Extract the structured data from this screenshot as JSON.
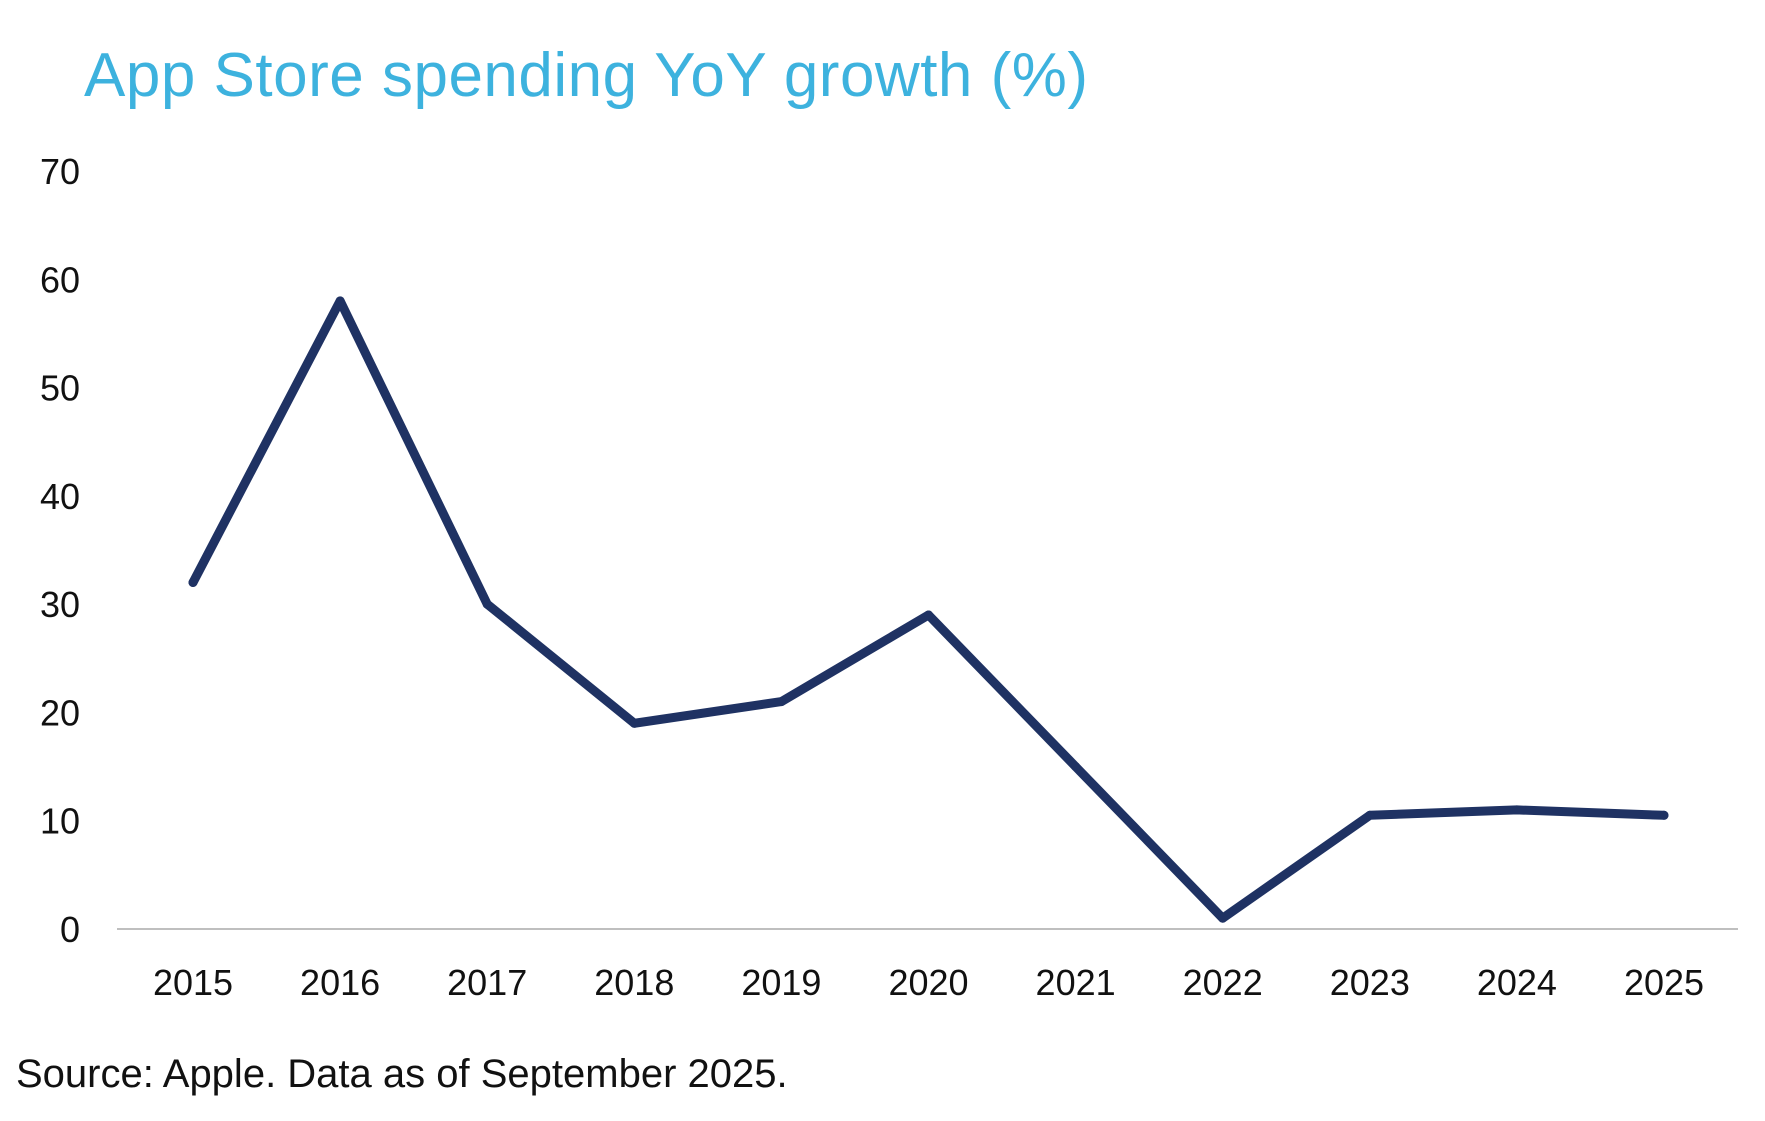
{
  "colors": {
    "title": "#3db2de",
    "line": "#1f3263",
    "axis": "#bfbfbf",
    "text": "#111111"
  },
  "chart_data": {
    "type": "line",
    "title": "App Store spending YoY growth (%)",
    "xlabel": "",
    "ylabel": "",
    "categories": [
      "2015",
      "2016",
      "2017",
      "2018",
      "2019",
      "2020",
      "2021",
      "2022",
      "2023",
      "2024",
      "2025"
    ],
    "series": [
      {
        "values": [
          32,
          58,
          30,
          19,
          21,
          29,
          15,
          1,
          10.5,
          11,
          10.5
        ]
      }
    ],
    "ylim": [
      0,
      70
    ],
    "yticks": [
      0,
      10,
      20,
      30,
      40,
      50,
      60,
      70
    ],
    "grid": false,
    "legend": "none"
  },
  "source": "Source: Apple. Data as of September 2025."
}
